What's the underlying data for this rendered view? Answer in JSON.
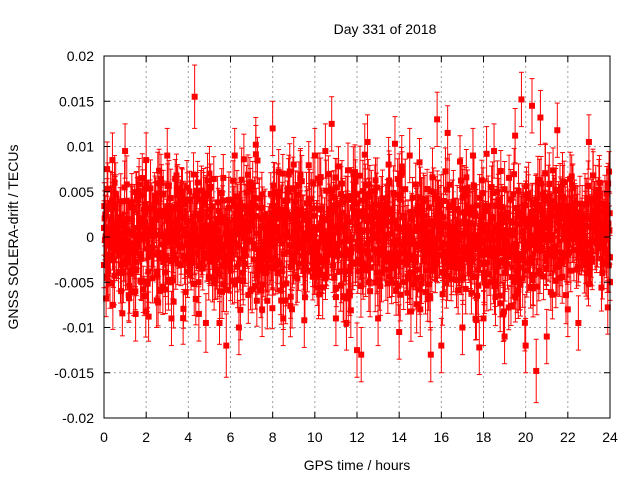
{
  "chart_data": {
    "type": "scatter",
    "title": "Day 331 of 2018",
    "xlabel": "GPS time / hours",
    "ylabel": "GNSS SOLERA-drift / TECUs",
    "xlim": [
      0,
      24
    ],
    "ylim": [
      -0.02,
      0.02
    ],
    "x_ticks": [
      "0",
      "2",
      "4",
      "6",
      "8",
      "10",
      "12",
      "14",
      "16",
      "18",
      "20",
      "22",
      "24"
    ],
    "y_ticks": [
      "-0.02",
      "-0.015",
      "-0.01",
      "-0.005",
      "0",
      "0.005",
      "0.01",
      "0.015",
      "0.02"
    ],
    "grid": true,
    "marker": "filled-square",
    "error_bars": true,
    "color": "#ff0000",
    "series": [
      {
        "points": [
          {
            "x": 0.0,
            "y": 0.001,
            "err": 0.003
          },
          {
            "x": 0.1,
            "y": -0.0068,
            "err": 0.002
          },
          {
            "x": 0.15,
            "y": 0.0075,
            "err": 0.003
          },
          {
            "x": 0.4,
            "y": 0.0085,
            "err": 0.003
          },
          {
            "x": 0.5,
            "y": 0.006,
            "err": 0.003
          },
          {
            "x": 1.0,
            "y": 0.0095,
            "err": 0.003
          },
          {
            "x": 1.5,
            "y": -0.0085,
            "err": 0.003
          },
          {
            "x": 2.0,
            "y": 0.0085,
            "err": 0.003
          },
          {
            "x": 2.5,
            "y": -0.007,
            "err": 0.003
          },
          {
            "x": 3.0,
            "y": 0.009,
            "err": 0.003
          },
          {
            "x": 3.2,
            "y": -0.009,
            "err": 0.003
          },
          {
            "x": 3.5,
            "y": 0.005,
            "err": 0.003
          },
          {
            "x": 4.3,
            "y": 0.0155,
            "err": 0.0035
          },
          {
            "x": 4.5,
            "y": -0.0085,
            "err": 0.003
          },
          {
            "x": 5.0,
            "y": 0.007,
            "err": 0.003
          },
          {
            "x": 5.5,
            "y": -0.006,
            "err": 0.003
          },
          {
            "x": 5.8,
            "y": -0.012,
            "err": 0.0035
          },
          {
            "x": 6.2,
            "y": 0.009,
            "err": 0.003
          },
          {
            "x": 6.4,
            "y": -0.01,
            "err": 0.003
          },
          {
            "x": 7.2,
            "y": 0.0102,
            "err": 0.003
          },
          {
            "x": 7.5,
            "y": -0.008,
            "err": 0.003
          },
          {
            "x": 8.0,
            "y": 0.012,
            "err": 0.003
          },
          {
            "x": 8.5,
            "y": -0.009,
            "err": 0.003
          },
          {
            "x": 9.0,
            "y": 0.008,
            "err": 0.003
          },
          {
            "x": 9.5,
            "y": -0.0092,
            "err": 0.003
          },
          {
            "x": 10.0,
            "y": 0.009,
            "err": 0.003
          },
          {
            "x": 10.5,
            "y": 0.0095,
            "err": 0.003
          },
          {
            "x": 10.8,
            "y": 0.0125,
            "err": 0.003
          },
          {
            "x": 11.0,
            "y": -0.009,
            "err": 0.003
          },
          {
            "x": 11.5,
            "y": -0.0095,
            "err": 0.003
          },
          {
            "x": 12.0,
            "y": -0.0125,
            "err": 0.003
          },
          {
            "x": 12.2,
            "y": -0.013,
            "err": 0.003
          },
          {
            "x": 12.5,
            "y": 0.0105,
            "err": 0.003
          },
          {
            "x": 13.0,
            "y": -0.009,
            "err": 0.003
          },
          {
            "x": 13.5,
            "y": 0.008,
            "err": 0.003
          },
          {
            "x": 13.8,
            "y": 0.0103,
            "err": 0.003
          },
          {
            "x": 14.0,
            "y": -0.0105,
            "err": 0.003
          },
          {
            "x": 14.5,
            "y": 0.009,
            "err": 0.003
          },
          {
            "x": 15.0,
            "y": -0.008,
            "err": 0.003
          },
          {
            "x": 15.5,
            "y": -0.013,
            "err": 0.003
          },
          {
            "x": 15.8,
            "y": 0.013,
            "err": 0.003
          },
          {
            "x": 16.0,
            "y": -0.012,
            "err": 0.003
          },
          {
            "x": 16.3,
            "y": 0.0115,
            "err": 0.003
          },
          {
            "x": 17.0,
            "y": -0.01,
            "err": 0.003
          },
          {
            "x": 17.5,
            "y": 0.009,
            "err": 0.003
          },
          {
            "x": 17.8,
            "y": -0.0122,
            "err": 0.003
          },
          {
            "x": 18.0,
            "y": -0.009,
            "err": 0.003
          },
          {
            "x": 18.5,
            "y": 0.0095,
            "err": 0.003
          },
          {
            "x": 19.0,
            "y": -0.011,
            "err": 0.003
          },
          {
            "x": 19.5,
            "y": 0.0112,
            "err": 0.003
          },
          {
            "x": 19.8,
            "y": 0.0152,
            "err": 0.003
          },
          {
            "x": 20.0,
            "y": -0.012,
            "err": 0.003
          },
          {
            "x": 20.3,
            "y": 0.0145,
            "err": 0.003
          },
          {
            "x": 20.5,
            "y": -0.0148,
            "err": 0.0035
          },
          {
            "x": 20.7,
            "y": 0.0132,
            "err": 0.003
          },
          {
            "x": 21.0,
            "y": -0.011,
            "err": 0.003
          },
          {
            "x": 21.5,
            "y": 0.0118,
            "err": 0.003
          },
          {
            "x": 22.0,
            "y": -0.008,
            "err": 0.003
          },
          {
            "x": 22.5,
            "y": -0.0095,
            "err": 0.003
          },
          {
            "x": 23.0,
            "y": 0.0105,
            "err": 0.003
          },
          {
            "x": 23.5,
            "y": 0.006,
            "err": 0.003
          },
          {
            "x": 24.0,
            "y": -0.005,
            "err": 0.002
          }
        ]
      }
    ],
    "note_dense_band": {
      "x_range": [
        0,
        24
      ],
      "typical_y_range": [
        -0.006,
        0.006
      ],
      "approx_count": 1600
    }
  }
}
